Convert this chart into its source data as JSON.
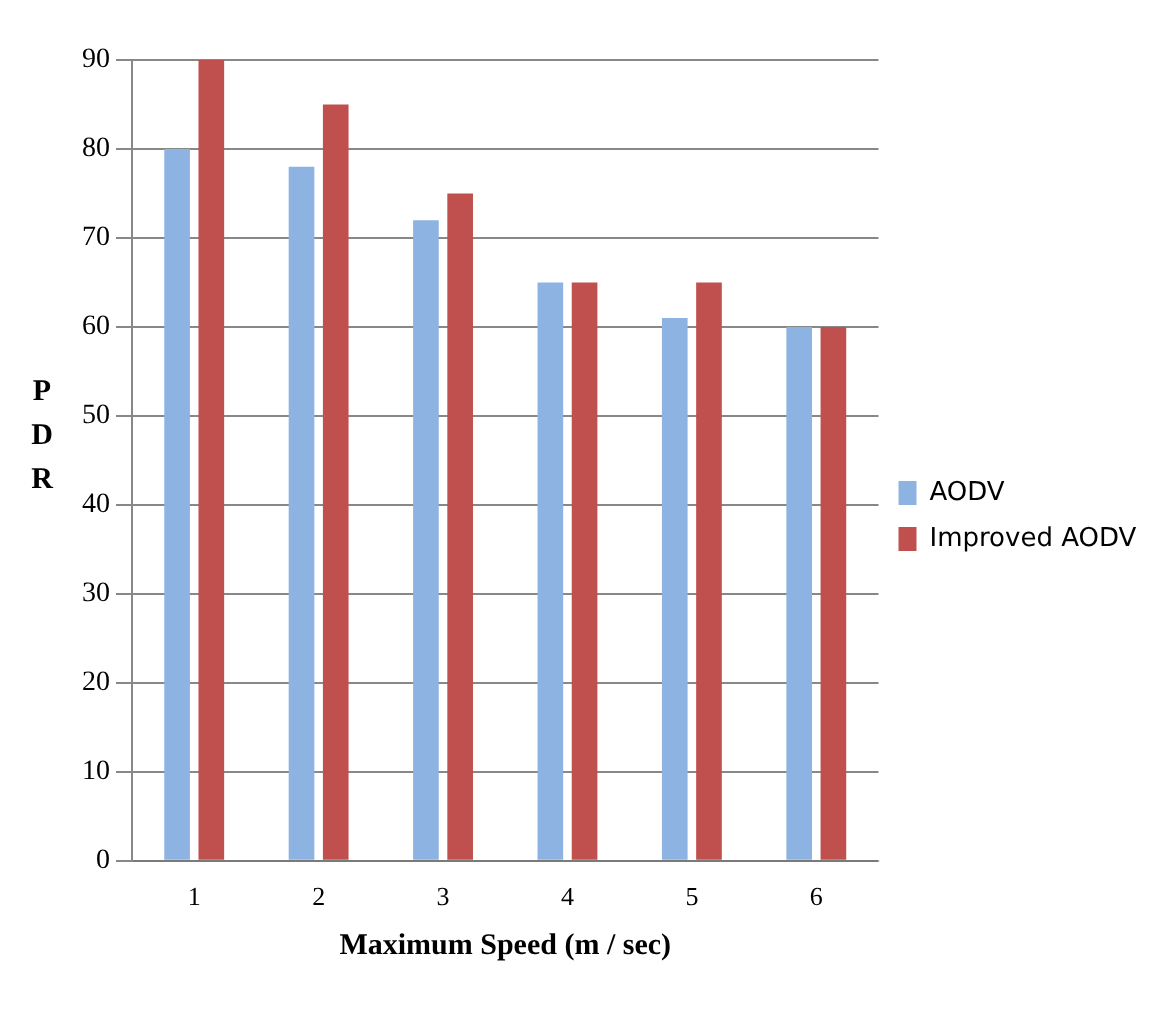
{
  "chart_data": {
    "type": "bar",
    "xlabel": "Maximum Speed (m / sec)",
    "ylabel": "PDR",
    "categories": [
      "1",
      "2",
      "3",
      "4",
      "5",
      "6"
    ],
    "series": [
      {
        "name": "AODV",
        "color": "#8db3e2",
        "values": [
          80,
          78,
          72,
          65,
          61,
          60
        ]
      },
      {
        "name": "Improved AODV",
        "color": "#c0504d",
        "values": [
          90,
          85,
          75,
          65,
          65,
          60
        ]
      }
    ],
    "ylim": [
      0,
      90
    ],
    "yticks": [
      0,
      10,
      20,
      30,
      40,
      50,
      60,
      70,
      80,
      90
    ],
    "grid": "y",
    "legend": "right"
  }
}
